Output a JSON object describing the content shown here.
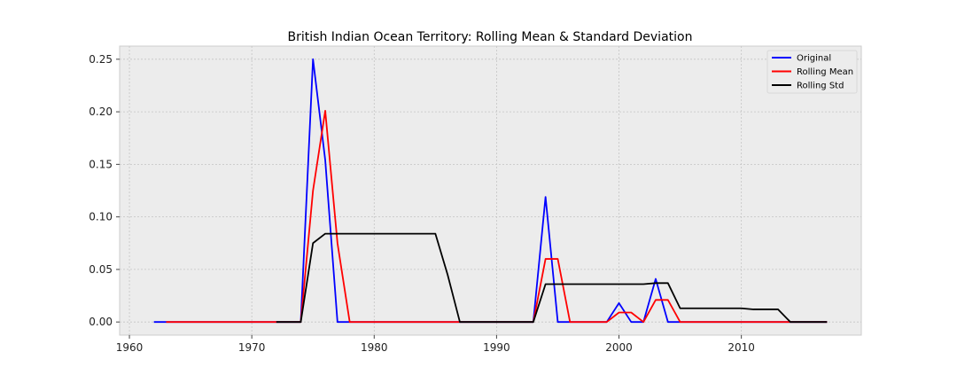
{
  "chart_data": {
    "type": "line",
    "title": "British Indian Ocean Territory: Rolling Mean & Standard Deviation",
    "xlabel": "",
    "ylabel": "",
    "xlim": [
      1959.2,
      2019.8
    ],
    "ylim": [
      -0.0125,
      0.2625
    ],
    "xticks": [
      1960,
      1970,
      1980,
      1990,
      2000,
      2010
    ],
    "yticks": [
      0.0,
      0.05,
      0.1,
      0.15,
      0.2,
      0.25
    ],
    "ytick_labels": [
      "0.00",
      "0.05",
      "0.10",
      "0.15",
      "0.20",
      "0.25"
    ],
    "grid": true,
    "legend_position": "top-right",
    "series": [
      {
        "name": "Original",
        "color": "#0000ff",
        "x": [
          1962,
          1963,
          1964,
          1965,
          1966,
          1967,
          1968,
          1969,
          1970,
          1971,
          1972,
          1973,
          1974,
          1975,
          1976,
          1977,
          1978,
          1979,
          1980,
          1981,
          1982,
          1983,
          1984,
          1985,
          1986,
          1987,
          1988,
          1989,
          1990,
          1991,
          1992,
          1993,
          1994,
          1995,
          1996,
          1997,
          1998,
          1999,
          2000,
          2001,
          2002,
          2003,
          2004,
          2005,
          2006,
          2007,
          2008,
          2009,
          2010,
          2011,
          2012,
          2013,
          2014,
          2015,
          2016,
          2017
        ],
        "y": [
          0,
          0,
          0,
          0,
          0,
          0,
          0,
          0,
          0,
          0,
          0,
          0,
          0,
          0.25,
          0.154,
          0,
          0,
          0,
          0,
          0,
          0,
          0,
          0,
          0,
          0,
          0,
          0,
          0,
          0,
          0,
          0,
          0,
          0.119,
          0,
          0,
          0,
          0,
          0,
          0.018,
          0,
          0,
          0.041,
          0,
          0,
          0,
          0,
          0,
          0,
          0,
          0,
          0,
          0,
          0,
          0,
          0,
          0
        ]
      },
      {
        "name": "Rolling Mean",
        "color": "#ff0000",
        "x": [
          1963,
          1964,
          1965,
          1966,
          1967,
          1968,
          1969,
          1970,
          1971,
          1972,
          1973,
          1974,
          1975,
          1976,
          1977,
          1978,
          1979,
          1980,
          1981,
          1982,
          1983,
          1984,
          1985,
          1986,
          1987,
          1988,
          1989,
          1990,
          1991,
          1992,
          1993,
          1994,
          1995,
          1996,
          1997,
          1998,
          1999,
          2000,
          2001,
          2002,
          2003,
          2004,
          2005,
          2006,
          2007,
          2008,
          2009,
          2010,
          2011,
          2012,
          2013,
          2014,
          2015,
          2016,
          2017
        ],
        "y": [
          0,
          0,
          0,
          0,
          0,
          0,
          0,
          0,
          0,
          0,
          0,
          0,
          0.125,
          0.201,
          0.075,
          0,
          0,
          0,
          0,
          0,
          0,
          0,
          0,
          0,
          0,
          0,
          0,
          0,
          0,
          0,
          0,
          0.06,
          0.06,
          0,
          0,
          0,
          0,
          0.009,
          0.009,
          0,
          0.021,
          0.021,
          0,
          0,
          0,
          0,
          0,
          0,
          0,
          0,
          0,
          0,
          0,
          0,
          0
        ]
      },
      {
        "name": "Rolling Std",
        "color": "#000000",
        "x": [
          1972,
          1973,
          1974,
          1975,
          1976,
          1977,
          1978,
          1979,
          1980,
          1981,
          1982,
          1983,
          1984,
          1985,
          1986,
          1987,
          1988,
          1989,
          1990,
          1991,
          1992,
          1993,
          1994,
          1995,
          1996,
          1997,
          1998,
          1999,
          2000,
          2001,
          2002,
          2003,
          2004,
          2005,
          2006,
          2007,
          2008,
          2009,
          2010,
          2011,
          2012,
          2013,
          2014,
          2015,
          2016,
          2017
        ],
        "y": [
          0,
          0,
          0,
          0.075,
          0.084,
          0.084,
          0.084,
          0.084,
          0.084,
          0.084,
          0.084,
          0.084,
          0.084,
          0.084,
          0.045,
          0,
          0,
          0,
          0,
          0,
          0,
          0,
          0.036,
          0.036,
          0.036,
          0.036,
          0.036,
          0.036,
          0.036,
          0.036,
          0.036,
          0.037,
          0.037,
          0.013,
          0.013,
          0.013,
          0.013,
          0.013,
          0.013,
          0.012,
          0.012,
          0.012,
          0,
          0,
          0,
          0
        ]
      }
    ]
  }
}
